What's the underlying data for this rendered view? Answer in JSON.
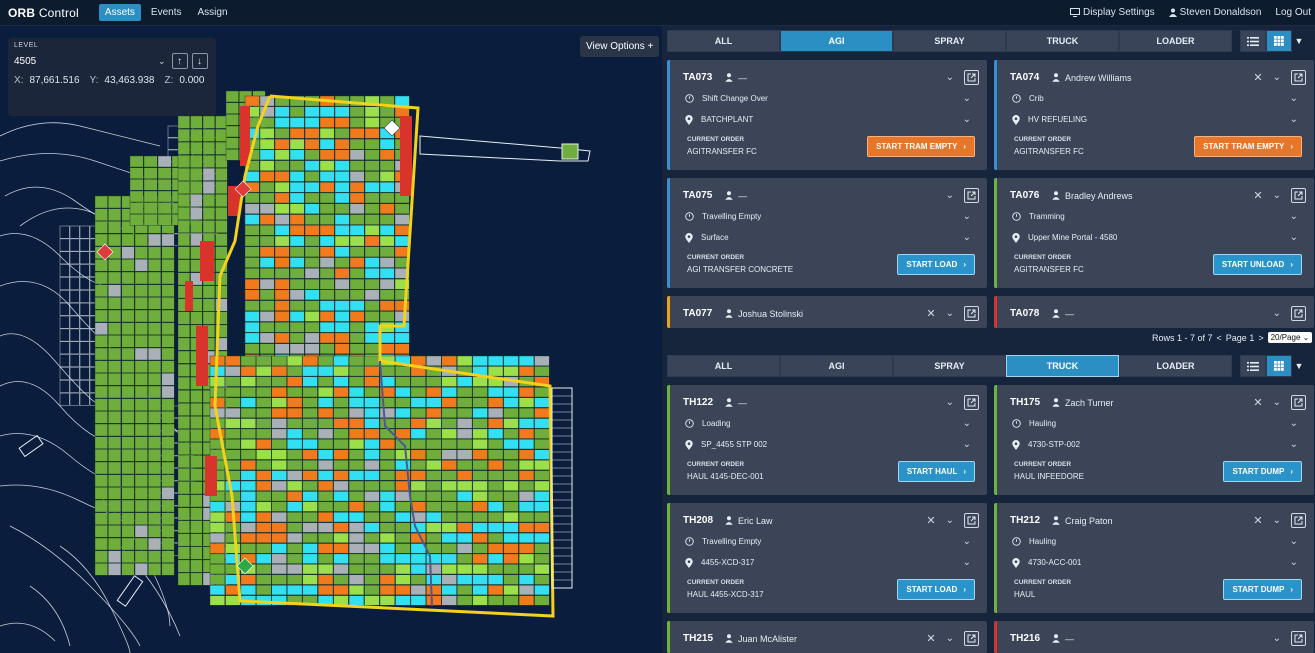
{
  "app": {
    "logo_bold": "ORB",
    "logo_thin": " Control"
  },
  "nav": [
    {
      "label": "Assets",
      "active": true
    },
    {
      "label": "Events",
      "active": false
    },
    {
      "label": "Assign",
      "active": false
    }
  ],
  "topright": {
    "display_settings": "Display Settings",
    "user": "Steven Donaldson",
    "logout": "Log Out"
  },
  "map": {
    "level_label": "LEVEL",
    "level_value": "4505",
    "x_label": "X:",
    "x_value": "87,661.516",
    "y_label": "Y:",
    "y_value": "43,463.938",
    "z_label": "Z:",
    "z_value": "0.000",
    "view_options": "View Options",
    "colors": {
      "green": "#6fae3d",
      "cyan": "#33e0f2",
      "orange": "#f07a1c",
      "red": "#d9342b",
      "gray": "#a9b0b8",
      "yellow": "#f2d21b",
      "lines": "#e8eef5"
    }
  },
  "tabs_top": [
    "ALL",
    "AGI",
    "SPRAY",
    "TRUCK",
    "LOADER"
  ],
  "tabs_top_active": "AGI",
  "tabs_bottom": [
    "ALL",
    "AGI",
    "SPRAY",
    "TRUCK",
    "LOADER"
  ],
  "tabs_bottom_active": "TRUCK",
  "agi_cards": [
    {
      "id": "TA073",
      "operator": "—",
      "status": "Shift Change Over",
      "location": "BATCHPLANT",
      "order_label": "CURRENT ORDER",
      "order": "AGITRANSFER FC",
      "action": "START TRAM EMPTY",
      "action_color": "orange",
      "border": "#3a8fd4",
      "has_x": false
    },
    {
      "id": "TA074",
      "operator": "Andrew Williams",
      "status": "Crib",
      "location": "HV REFUELING",
      "order_label": "CURRENT ORDER",
      "order": "AGITRANSFER FC",
      "action": "START TRAM EMPTY",
      "action_color": "orange",
      "border": "#3a8fd4",
      "has_x": true
    },
    {
      "id": "TA075",
      "operator": "—",
      "status": "Travelling Empty",
      "location": "Surface",
      "order_label": "CURRENT ORDER",
      "order": "AGI TRANSFER CONCRETE",
      "action": "START LOAD",
      "action_color": "blue",
      "border": "#3a8fd4",
      "has_x": false
    },
    {
      "id": "TA076",
      "operator": "Bradley Andrews",
      "status": "Tramming",
      "location": "Upper Mine Portal - 4580",
      "order_label": "CURRENT ORDER",
      "order": "AGITRANSFER FC",
      "action": "START UNLOAD",
      "action_color": "blue",
      "border": "#6fb33f",
      "has_x": true
    },
    {
      "id": "TA077",
      "operator": "Joshua Stolinski",
      "border": "#e8a21c",
      "has_x": true
    },
    {
      "id": "TA078",
      "operator": "—",
      "border": "#d9342b",
      "has_x": false
    }
  ],
  "pager": {
    "rows": "Rows 1 - 7 of 7",
    "prev": "<",
    "page": "Page 1",
    "next": ">",
    "per_page": "20/Page"
  },
  "truck_cards": [
    {
      "id": "TH122",
      "operator": "—",
      "status": "Loading",
      "location": "SP_4455 STP 002",
      "order_label": "CURRENT ORDER",
      "order": "HAUL  4145-DEC-001",
      "action": "START HAUL",
      "action_color": "blue",
      "border": "#6fb33f",
      "has_x": false
    },
    {
      "id": "TH175",
      "operator": "Zach Turner",
      "status": "Hauling",
      "location": "4730-STP-002",
      "order_label": "CURRENT ORDER",
      "order": "HAUL  INFEEDORE",
      "action": "START DUMP",
      "action_color": "blue",
      "border": "#6fb33f",
      "has_x": true
    },
    {
      "id": "TH208",
      "operator": "Eric Law",
      "status": "Travelling Empty",
      "location": "4455-XCD-317",
      "order_label": "CURRENT ORDER",
      "order": "HAUL  4455-XCD-317",
      "action": "START LOAD",
      "action_color": "blue",
      "border": "#6fb33f",
      "has_x": true
    },
    {
      "id": "TH212",
      "operator": "Craig Paton",
      "status": "Hauling",
      "location": "4730-ACC-001",
      "order_label": "CURRENT ORDER",
      "order": "HAUL",
      "action": "START DUMP",
      "action_color": "blue",
      "border": "#6fb33f",
      "has_x": true
    },
    {
      "id": "TH215",
      "operator": "Juan McAlister",
      "border": "#6fb33f",
      "has_x": true
    },
    {
      "id": "TH216",
      "operator": "—",
      "border": "#d9342b",
      "has_x": false
    }
  ]
}
